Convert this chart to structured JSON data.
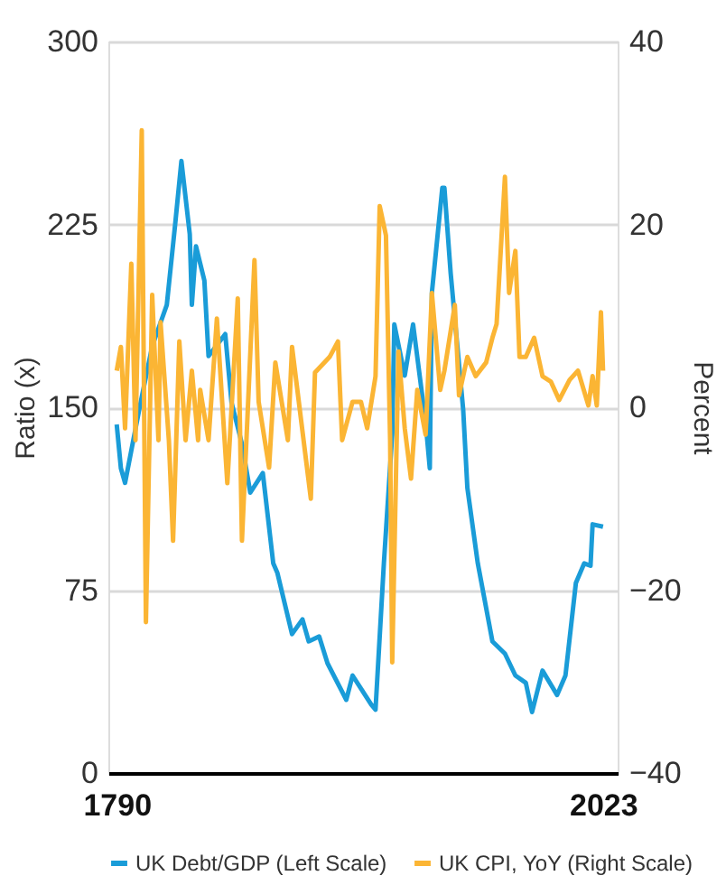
{
  "chart_data": {
    "type": "line",
    "ylabel": "Ratio (x)",
    "y2label": "Percent",
    "xlim": [
      1786,
      2030
    ],
    "xticks": [
      1790,
      2023
    ],
    "ylim": [
      0,
      300
    ],
    "yticks": [
      0,
      75,
      150,
      225,
      300
    ],
    "y2lim": [
      -40,
      40
    ],
    "y2ticks": [
      {
        "value": -40,
        "label": "−40"
      },
      {
        "value": -20,
        "label": "−20"
      },
      0,
      20,
      40
    ],
    "grid": "y",
    "legend": "bottom",
    "line_style": "solid",
    "marker": "none",
    "series": [
      {
        "name": "UK Debt/GDP (Left Scale)",
        "color": "#1a9cd8",
        "x": [
          1790,
          1792,
          1794,
          1801,
          1807,
          1814,
          1818,
          1821,
          1825,
          1826,
          1828,
          1832,
          1834,
          1842,
          1845,
          1850,
          1854,
          1860,
          1865,
          1867,
          1874,
          1879,
          1882,
          1887,
          1891,
          1900,
          1903,
          1912,
          1914,
          1918,
          1922,
          1923,
          1928,
          1932,
          1938,
          1940,
          1941,
          1946,
          1947,
          1950,
          1956,
          1958,
          1963,
          1970,
          1976,
          1981,
          1986,
          1989,
          1994,
          2001,
          2005,
          2010,
          2014,
          2017,
          2018,
          2023
        ],
        "values": [
          143,
          125,
          119,
          150,
          175,
          192,
          225,
          251,
          221,
          192,
          216,
          202,
          171,
          180,
          152,
          135,
          115,
          123,
          86,
          82,
          57,
          63,
          54,
          56,
          45,
          30,
          40,
          28,
          26,
          86,
          139,
          184,
          163,
          184,
          144,
          125,
          197,
          240,
          240,
          205,
          149,
          117,
          86,
          54,
          49,
          40,
          37,
          25,
          42,
          32,
          40,
          78,
          86,
          85,
          102,
          101
        ]
      },
      {
        "name": "UK CPI, YoY (Right Scale)",
        "color": "#fbb534",
        "axis": "y2",
        "x": [
          1790,
          1792,
          1794,
          1797,
          1799,
          1802,
          1804,
          1807,
          1810,
          1811,
          1815,
          1817,
          1820,
          1823,
          1826,
          1829,
          1830,
          1834,
          1838,
          1843,
          1848,
          1850,
          1856,
          1858,
          1863,
          1866,
          1872,
          1874,
          1883,
          1885,
          1892,
          1896,
          1898,
          1903,
          1907,
          1910,
          1914,
          1916,
          1919,
          1921,
          1922,
          1925,
          1928,
          1931,
          1934,
          1938,
          1941,
          1945,
          1947,
          1952,
          1954,
          1958,
          1962,
          1967,
          1970,
          1972,
          1976,
          1978,
          1981,
          1983,
          1986,
          1990,
          1994,
          1998,
          2002,
          2007,
          2011,
          2016,
          2018,
          2020,
          2022,
          2023
        ],
        "values": [
          4,
          6.6,
          -2.3,
          15.7,
          -3.6,
          30.3,
          -23.5,
          12.3,
          -3.6,
          9.3,
          -3.6,
          -14.6,
          7.2,
          -3.6,
          4,
          -3.6,
          1.9,
          -3.6,
          9.7,
          -8.3,
          11.9,
          -14.6,
          16.1,
          0.6,
          -6.6,
          4.9,
          -3.6,
          6.6,
          -10,
          3.8,
          5.5,
          7.2,
          -3.6,
          0.6,
          0.6,
          -2.3,
          3.4,
          22,
          18.8,
          -3.6,
          -27.9,
          6.1,
          -2.3,
          -7.8,
          1.9,
          -3,
          12.5,
          1.9,
          4,
          11.2,
          1.3,
          5.5,
          3.4,
          4.9,
          7.6,
          9.1,
          25.2,
          12.5,
          17.1,
          5.5,
          5.5,
          7.6,
          3.4,
          2.8,
          0.8,
          3,
          4,
          0.2,
          3.4,
          0.2,
          10.4,
          4
        ]
      }
    ]
  }
}
